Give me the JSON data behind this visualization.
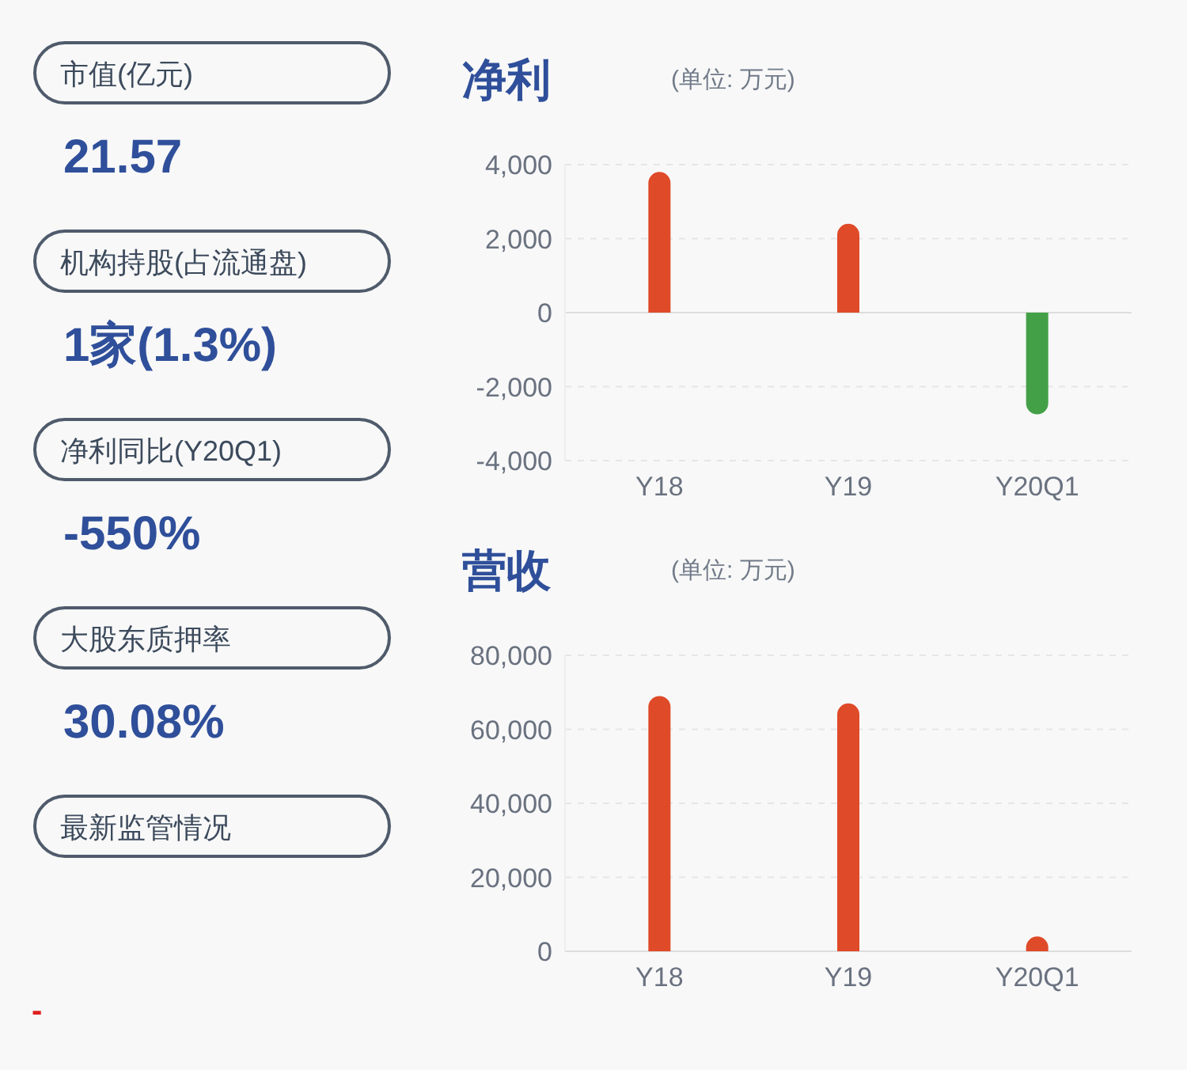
{
  "chart_data": [
    {
      "type": "other",
      "categories": [
        "市值(亿元)",
        "机构持股(占流通盘)",
        "净利同比(Y20Q1)",
        "大股东质押率",
        "最新监管情况"
      ],
      "value_labels": [
        "21.57",
        "1家(1.3%)",
        "-550%",
        "30.08%",
        null
      ],
      "annotations": [
        "-"
      ]
    },
    {
      "type": "bar",
      "title": "净利",
      "subtitle": "(单位: 万元)",
      "categories": [
        "Y18",
        "Y19",
        "Y20Q1"
      ],
      "values": [
        3800,
        2400,
        -2750
      ],
      "colors": [
        "#df4a28",
        "#df4a28",
        "#43a047"
      ],
      "ylim": [
        -4000,
        4000
      ],
      "yticks": [
        {
          "value": -4000,
          "label": "-4,000"
        },
        {
          "value": -2000,
          "label": "-2,000"
        },
        0,
        {
          "value": 2000,
          "label": "2,000"
        },
        {
          "value": 4000,
          "label": "4,000"
        }
      ],
      "grid": "y"
    },
    {
      "type": "bar",
      "title": "营收",
      "subtitle": "(单位: 万元)",
      "categories": [
        "Y18",
        "Y19",
        "Y20Q1"
      ],
      "values": [
        69000,
        67000,
        4000
      ],
      "colors": [
        "#df4a28",
        "#df4a28",
        "#df4a28"
      ],
      "ylim": [
        0,
        80000
      ],
      "yticks": [
        0,
        {
          "value": 20000,
          "label": "20,000"
        },
        {
          "value": 40000,
          "label": "40,000"
        },
        {
          "value": 60000,
          "label": "60,000"
        },
        {
          "value": 80000,
          "label": "80,000"
        }
      ],
      "grid": "y"
    }
  ]
}
